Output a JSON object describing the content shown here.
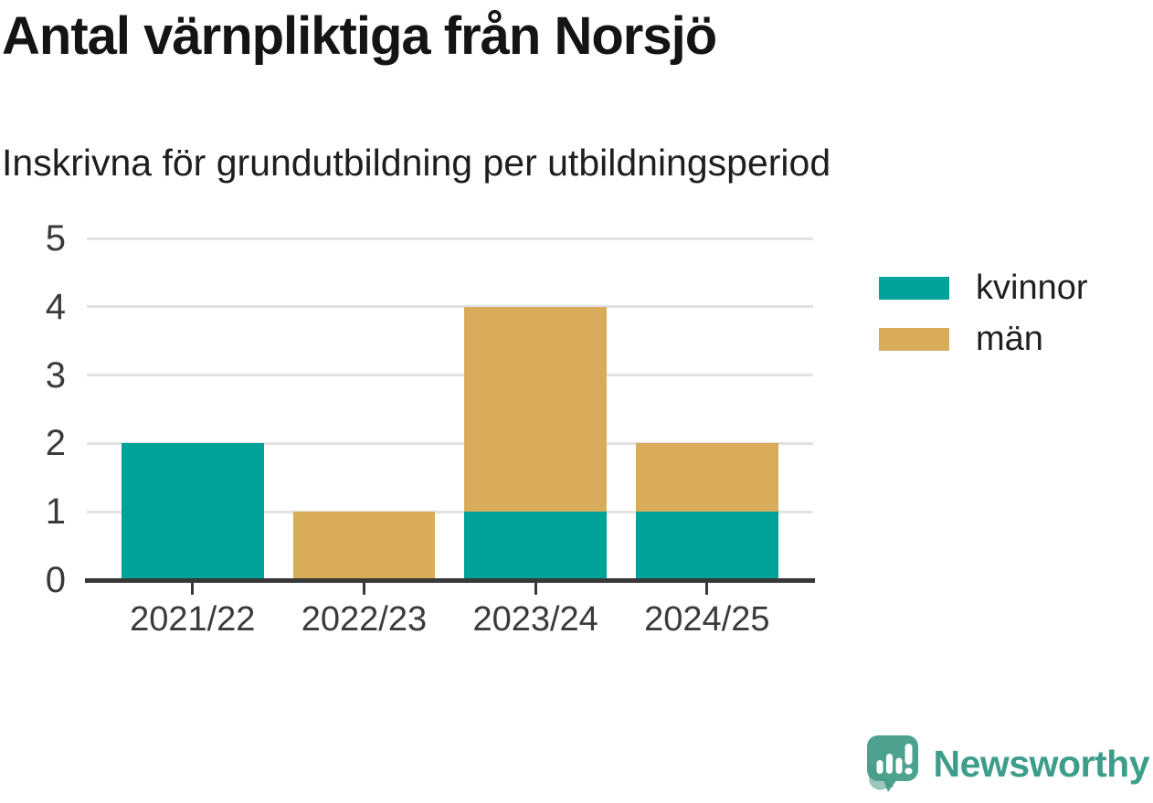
{
  "header": {
    "title": "Antal värnpliktiga från Norsjö",
    "subtitle": "Inskrivna för grundutbildning per utbildningsperiod"
  },
  "chart_data": {
    "type": "bar",
    "stacked": true,
    "title": "Antal värnpliktiga från Norsjö",
    "subtitle": "Inskrivna för grundutbildning per utbildningsperiod",
    "categories": [
      "2021/22",
      "2022/23",
      "2023/24",
      "2024/25"
    ],
    "series": [
      {
        "name": "kvinnor",
        "color": "#00a29a",
        "values": [
          2,
          0,
          1,
          1
        ]
      },
      {
        "name": "män",
        "color": "#d9ac5c",
        "values": [
          0,
          1,
          3,
          1
        ]
      }
    ],
    "xlabel": "",
    "ylabel": "",
    "ylim": [
      0,
      5
    ],
    "yticks": [
      0,
      1,
      2,
      3,
      4,
      5
    ],
    "grid": true,
    "gridline_color": "#e2e2e2",
    "axis_color": "#383838",
    "legend_position": "right"
  },
  "footer": {
    "brand": "Newsworthy",
    "brand_color": "#3d9d8b",
    "logo_color": "#4ca28e"
  }
}
